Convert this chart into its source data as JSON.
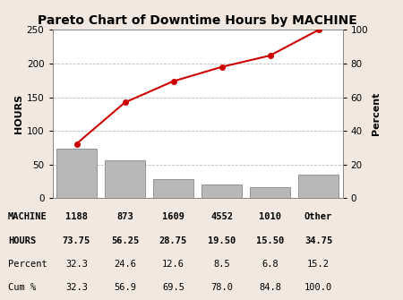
{
  "title": "Pareto Chart of Downtime Hours by MACHINE",
  "categories": [
    "1188",
    "873",
    "1609",
    "4552",
    "1010",
    "Other"
  ],
  "hours": [
    73.75,
    56.25,
    28.75,
    19.5,
    15.5,
    34.75
  ],
  "cum_pct": [
    32.3,
    56.9,
    69.5,
    78.0,
    84.8,
    100.0
  ],
  "bar_color": "#b8b8b8",
  "bar_edge_color": "#888888",
  "line_color": "#cc0000",
  "ylabel_left": "HOURS",
  "ylabel_right": "Percent",
  "ylim_left": [
    0,
    250
  ],
  "ylim_right": [
    0,
    100
  ],
  "yticks_left": [
    0,
    50,
    100,
    150,
    200,
    250
  ],
  "yticks_right": [
    0,
    20,
    40,
    60,
    80,
    100
  ],
  "background_color": "#f2e8df",
  "plot_bg_color": "#ffffff",
  "table_row_labels": [
    "MACHINE",
    "HOURS",
    "Percent",
    "Cum %"
  ],
  "table_values": [
    [
      "1188",
      "873",
      "1609",
      "4552",
      "1010",
      "Other"
    ],
    [
      "73.75",
      "56.25",
      "28.75",
      "19.50",
      "15.50",
      "34.75"
    ],
    [
      "32.3",
      "24.6",
      "12.6",
      "8.5",
      "6.8",
      "15.2"
    ],
    [
      "32.3",
      "56.9",
      "69.5",
      "78.0",
      "84.8",
      "100.0"
    ]
  ],
  "grid_color": "#bbbbbb",
  "title_fontsize": 10,
  "axis_label_fontsize": 8,
  "tick_fontsize": 7.5,
  "table_fontsize": 7.5
}
